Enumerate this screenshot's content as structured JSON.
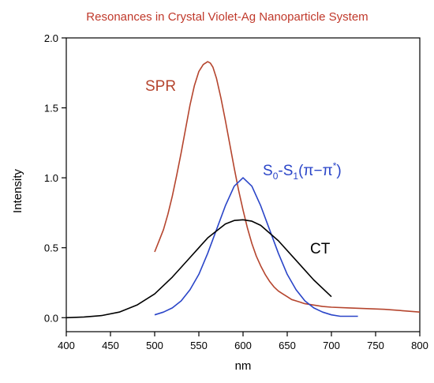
{
  "chart_data": {
    "type": "line",
    "title": "Resonances in Crystal Violet-Ag Nanoparticle System",
    "xlabel": "nm",
    "ylabel": "Intensity",
    "xlim": [
      400,
      800
    ],
    "ylim": [
      -0.1,
      2.0
    ],
    "xticks": [
      "400",
      "450",
      "500",
      "550",
      "600",
      "650",
      "700",
      "750",
      "800"
    ],
    "yticks": [
      "0.0",
      "0.5",
      "1.0",
      "1.5",
      "2.0"
    ],
    "grid": false,
    "colors": {
      "title": "#c0392b",
      "spr": "#b5452e",
      "s0s1": "#2a45c8",
      "ct": "#000000"
    },
    "series": [
      {
        "key": "spr",
        "label_text": "SPR",
        "x": [
          500,
          505,
          510,
          515,
          520,
          525,
          530,
          535,
          540,
          545,
          550,
          555,
          560,
          563,
          566,
          570,
          575,
          580,
          585,
          590,
          595,
          600,
          605,
          610,
          615,
          620,
          625,
          630,
          635,
          640,
          645,
          650,
          655,
          660,
          665,
          670,
          680,
          690,
          700,
          720,
          740,
          760,
          780,
          800
        ],
        "y": [
          0.47,
          0.55,
          0.63,
          0.74,
          0.87,
          1.02,
          1.18,
          1.35,
          1.52,
          1.66,
          1.76,
          1.81,
          1.83,
          1.82,
          1.79,
          1.71,
          1.57,
          1.41,
          1.24,
          1.07,
          0.91,
          0.77,
          0.64,
          0.53,
          0.44,
          0.37,
          0.31,
          0.26,
          0.22,
          0.19,
          0.17,
          0.15,
          0.13,
          0.12,
          0.11,
          0.1,
          0.09,
          0.08,
          0.075,
          0.07,
          0.065,
          0.06,
          0.05,
          0.04
        ]
      },
      {
        "key": "s0s1",
        "label_main": "S",
        "label_sub0": "0",
        "label_dash": "-S",
        "label_sub1": "1",
        "label_paren": "(π−π",
        "label_star": "*",
        "label_close": ")",
        "x": [
          500,
          510,
          520,
          530,
          540,
          550,
          560,
          570,
          580,
          590,
          600,
          610,
          620,
          630,
          640,
          650,
          660,
          670,
          680,
          690,
          700,
          710,
          720,
          730
        ],
        "y": [
          0.02,
          0.04,
          0.07,
          0.12,
          0.2,
          0.31,
          0.46,
          0.63,
          0.8,
          0.94,
          1.0,
          0.94,
          0.8,
          0.63,
          0.46,
          0.31,
          0.2,
          0.12,
          0.07,
          0.04,
          0.02,
          0.01,
          0.01,
          0.01
        ]
      },
      {
        "key": "ct",
        "label_text": "CT",
        "x": [
          400,
          420,
          440,
          460,
          480,
          500,
          520,
          540,
          560,
          580,
          590,
          600,
          610,
          620,
          640,
          660,
          680,
          700
        ],
        "y": [
          0.0,
          0.005,
          0.015,
          0.04,
          0.09,
          0.17,
          0.29,
          0.43,
          0.57,
          0.67,
          0.695,
          0.7,
          0.69,
          0.66,
          0.55,
          0.41,
          0.27,
          0.15
        ]
      }
    ]
  }
}
